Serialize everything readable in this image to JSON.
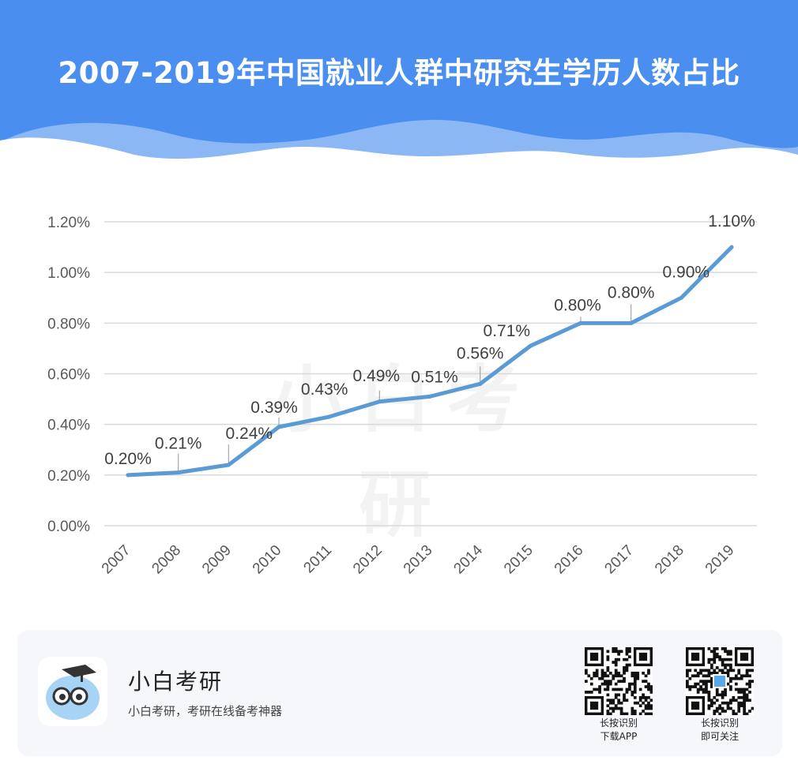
{
  "header": {
    "title": "2007-2019年中国就业人群中研究生学历人数占比",
    "bg_color": "#4a8ef0",
    "wave_color": "#8cb7f5"
  },
  "watermark": "小白考研",
  "chart_data": {
    "type": "line",
    "title": "2007-2019年中国就业人群中研究生学历人数占比",
    "xlabel": "",
    "ylabel": "",
    "categories": [
      "2007",
      "2008",
      "2009",
      "2010",
      "2011",
      "2012",
      "2013",
      "2014",
      "2015",
      "2016",
      "2017",
      "2018",
      "2019"
    ],
    "values": [
      0.2,
      0.21,
      0.24,
      0.39,
      0.43,
      0.49,
      0.51,
      0.56,
      0.71,
      0.8,
      0.8,
      0.9,
      1.1
    ],
    "point_labels": [
      "0.20%",
      "0.21%",
      "0.24%",
      "0.39%",
      "0.43%",
      "0.49%",
      "0.51%",
      "0.56%",
      "0.71%",
      "0.80%",
      "0.80%",
      "0.90%",
      "1.10%"
    ],
    "y_ticks": [
      "0.00%",
      "0.20%",
      "0.40%",
      "0.60%",
      "0.80%",
      "1.00%",
      "1.20%"
    ],
    "ylim": [
      0,
      1.2
    ],
    "grid": true,
    "line_color": "#5b9bd5",
    "legend": "none"
  },
  "footer": {
    "brand_name": "小白考研",
    "slogan": "小白考研，考研在线备考神器",
    "qr_app": {
      "line1": "长按识别",
      "line2": "下载APP"
    },
    "qr_follow": {
      "line1": "长按识别",
      "line2": "即可关注"
    }
  }
}
